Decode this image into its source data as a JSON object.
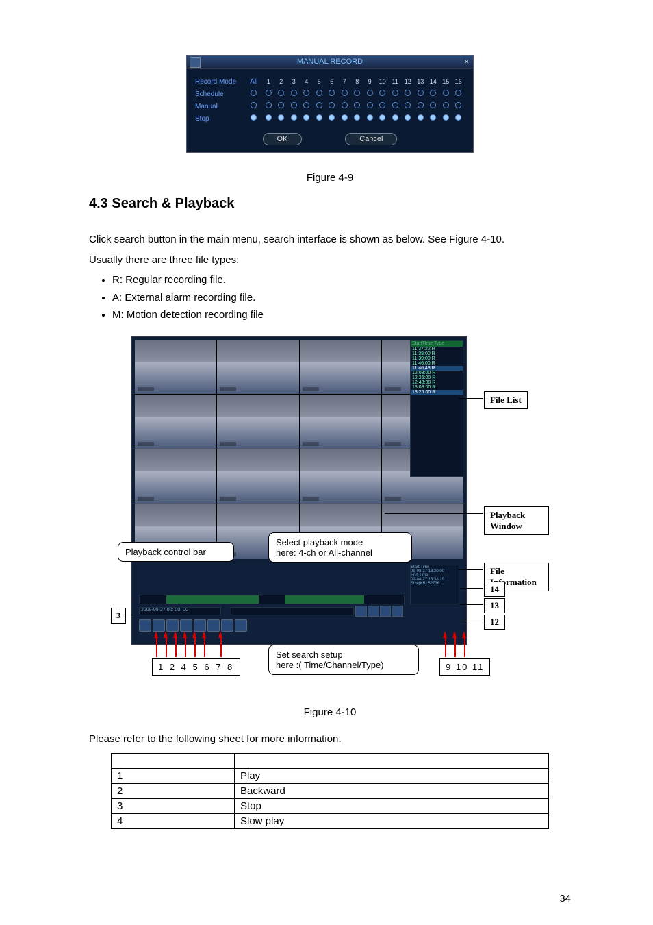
{
  "manual_record": {
    "title": "MANUAL RECORD",
    "rows": [
      {
        "label": "Record Mode",
        "all": "All",
        "type": "header"
      },
      {
        "label": "Schedule",
        "all": "○",
        "type": "empty"
      },
      {
        "label": "Manual",
        "all": "○",
        "type": "empty"
      },
      {
        "label": "Stop",
        "all": "●",
        "type": "filled"
      }
    ],
    "channels": [
      "1",
      "2",
      "3",
      "4",
      "5",
      "6",
      "7",
      "8",
      "9",
      "10",
      "11",
      "12",
      "13",
      "14",
      "15",
      "16"
    ],
    "ok": "OK",
    "cancel": "Cancel"
  },
  "fig9_caption": "Figure 4-9",
  "section_title": "4.3   Search & Playback",
  "para1": "Click search button in the main menu, search interface is shown as below. See Figure 4-10.",
  "para2": "Usually there are three file types:",
  "bullets": [
    "R: Regular recording file.",
    "A: External alarm recording file.",
    "M: Motion detection recording file"
  ],
  "filelist": {
    "header": "StartTime Type",
    "rows": [
      {
        "t": "11:37:22 R",
        "sel": false
      },
      {
        "t": "11:38:00 R",
        "sel": false
      },
      {
        "t": "11:39:00 R",
        "sel": false
      },
      {
        "t": "11:46:00 R",
        "sel": false
      },
      {
        "t": "11:46:43 R",
        "sel": true
      },
      {
        "t": "12:08:00 R",
        "sel": false
      },
      {
        "t": "12:26:00 R",
        "sel": false
      },
      {
        "t": "12:48:00 R",
        "sel": false
      },
      {
        "t": "13:08:00 R",
        "sel": false
      },
      {
        "t": "13:26:00 R",
        "sel": true
      }
    ]
  },
  "info_box": {
    "l1": "Start Time",
    "l2": "09-08-27 13:20:00",
    "l3": "End Time",
    "l4": "09-08-27 13:38:19",
    "l5": "Size(KB) 52736"
  },
  "date_text": "2009-08-27 00: 00: 00",
  "callouts": {
    "pb_ctrl": "Playback control bar",
    "mode_l1": "Select playback mode",
    "mode_l2": "here: 4-ch or All-channel",
    "setup_l1": "Set search setup",
    "setup_l2": "here :( Time/Channel/Type)"
  },
  "labels": {
    "file_list": "File List",
    "pb_window": "Playback Window",
    "file_info": "File Information",
    "n3": "3",
    "n12": "12",
    "n13": "13",
    "n14": "14",
    "nums_left": "1 2 4 5 6 7   8",
    "nums_right": "9 10 11"
  },
  "fig10_caption": "Figure 4-10",
  "table_intro": "Please refer to the following sheet for more information.",
  "table": {
    "rows": [
      {
        "n": "",
        "d": ""
      },
      {
        "n": "1",
        "d": "Play"
      },
      {
        "n": "2",
        "d": "Backward"
      },
      {
        "n": "3",
        "d": "Stop"
      },
      {
        "n": "4",
        "d": "Slow play"
      }
    ]
  },
  "page_num": "34"
}
